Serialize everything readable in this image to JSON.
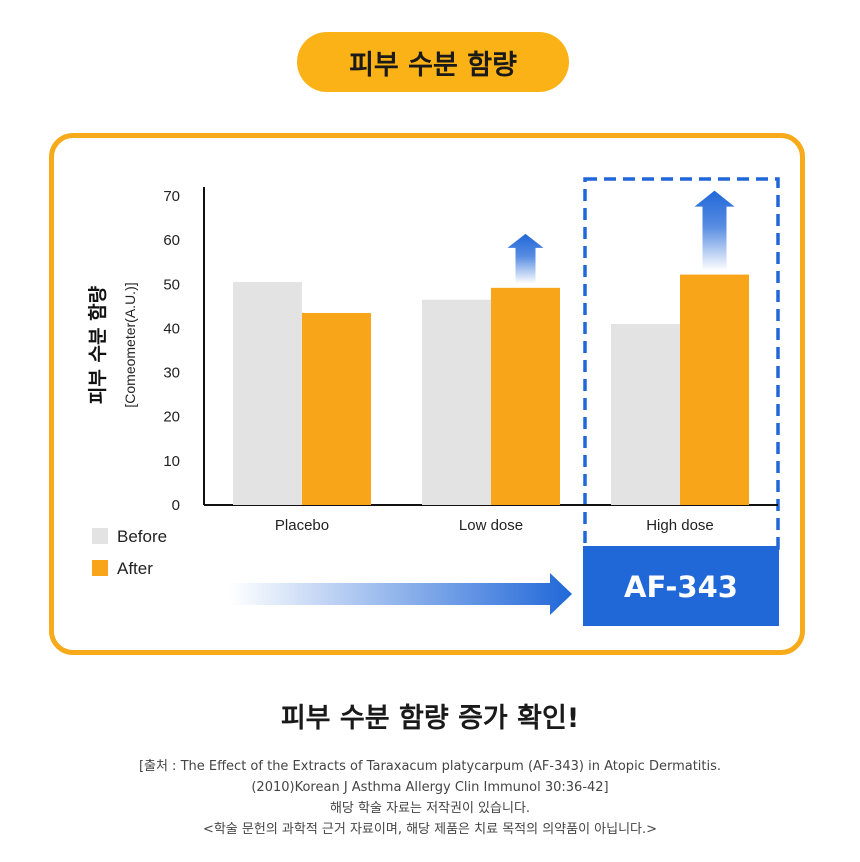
{
  "title_badge": "피부 수분 함량",
  "headline": "피부 수분 함량 증가 확인!",
  "source_lines": [
    "[출처 : The Effect of the Extracts of Taraxacum platycarpum (AF-343) in Atopic Dermatitis.",
    "(2010)Korean J Asthma Allergy Clin Immunol 30:36-42]",
    "해당 학술 자료는 저작권이 있습니다.",
    "<학술 문헌의 과학적 근거 자료이며, 해당 제품은 치료 목적의 의약품이 아닙니다.>"
  ],
  "highlight_label": "AF-343",
  "colors": {
    "before": "#e3e3e3",
    "after": "#f9a51a",
    "accent": "#2067d8",
    "frame": "#f7aa1a"
  },
  "chart_data": {
    "type": "bar",
    "categories": [
      "Placebo",
      "Low dose",
      "High dose"
    ],
    "series": [
      {
        "name": "Before",
        "values": [
          50.5,
          46.5,
          41
        ]
      },
      {
        "name": "After",
        "values": [
          43.5,
          49.2,
          52.2
        ]
      }
    ],
    "ylabel": "피부 수분 함량",
    "ylabel_unit": "[Comeometer(A.U.)]",
    "ylim": [
      0,
      70
    ],
    "yticks": [
      0,
      10,
      20,
      30,
      40,
      50,
      60,
      70
    ],
    "legend_position": "bottom-left",
    "grid": false,
    "increase_arrows_on": [
      "Low dose",
      "High dose"
    ],
    "highlighted_category": "High dose"
  }
}
